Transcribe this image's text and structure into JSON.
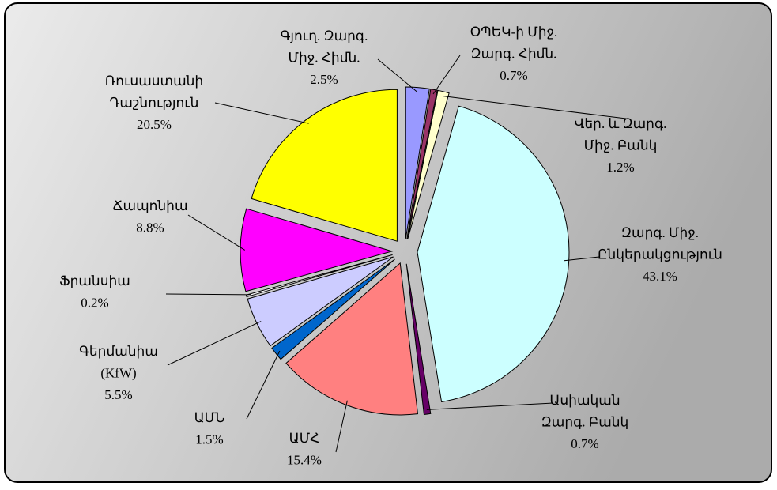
{
  "chart_data": {
    "type": "pie",
    "categories": [
      [
        "Գյուղ. Զարգ.",
        "Միջ. Հիմն."
      ],
      [
        "ՕՊԵԿ-ի Միջ.",
        "Զարգ. Հիմն."
      ],
      [
        "Վեր. և Զարգ.",
        "Միջ. Բանկ"
      ],
      [
        "Զարգ. Միջ.",
        "Ընկերակցություն"
      ],
      [
        "Ասիական",
        "Զարգ. Բանկ"
      ],
      [
        "ԱՄՀ"
      ],
      [
        "ԱՄՆ"
      ],
      [
        "Գերմանիա",
        "(KfW)"
      ],
      [
        "Ֆրանսիա"
      ],
      [
        "Ճապոնիա"
      ],
      [
        "Ռուսաստանի",
        "Դաշնություն"
      ]
    ],
    "values": [
      2.5,
      0.7,
      1.2,
      43.1,
      0.7,
      15.4,
      1.5,
      5.5,
      0.2,
      8.8,
      20.5
    ],
    "value_labels": [
      "2.5%",
      "0.7%",
      "1.2%",
      "43.1%",
      "0.7%",
      "15.4%",
      "1.5%",
      "5.5%",
      "0.2%",
      "8.8%",
      "20.5%"
    ],
    "colors": [
      "#9999ff",
      "#993366",
      "#ffffcc",
      "#ccffff",
      "#660066",
      "#ff8080",
      "#0066cc",
      "#ccccff",
      "#ffffff",
      "#ff00ff",
      "#ffff00"
    ]
  }
}
